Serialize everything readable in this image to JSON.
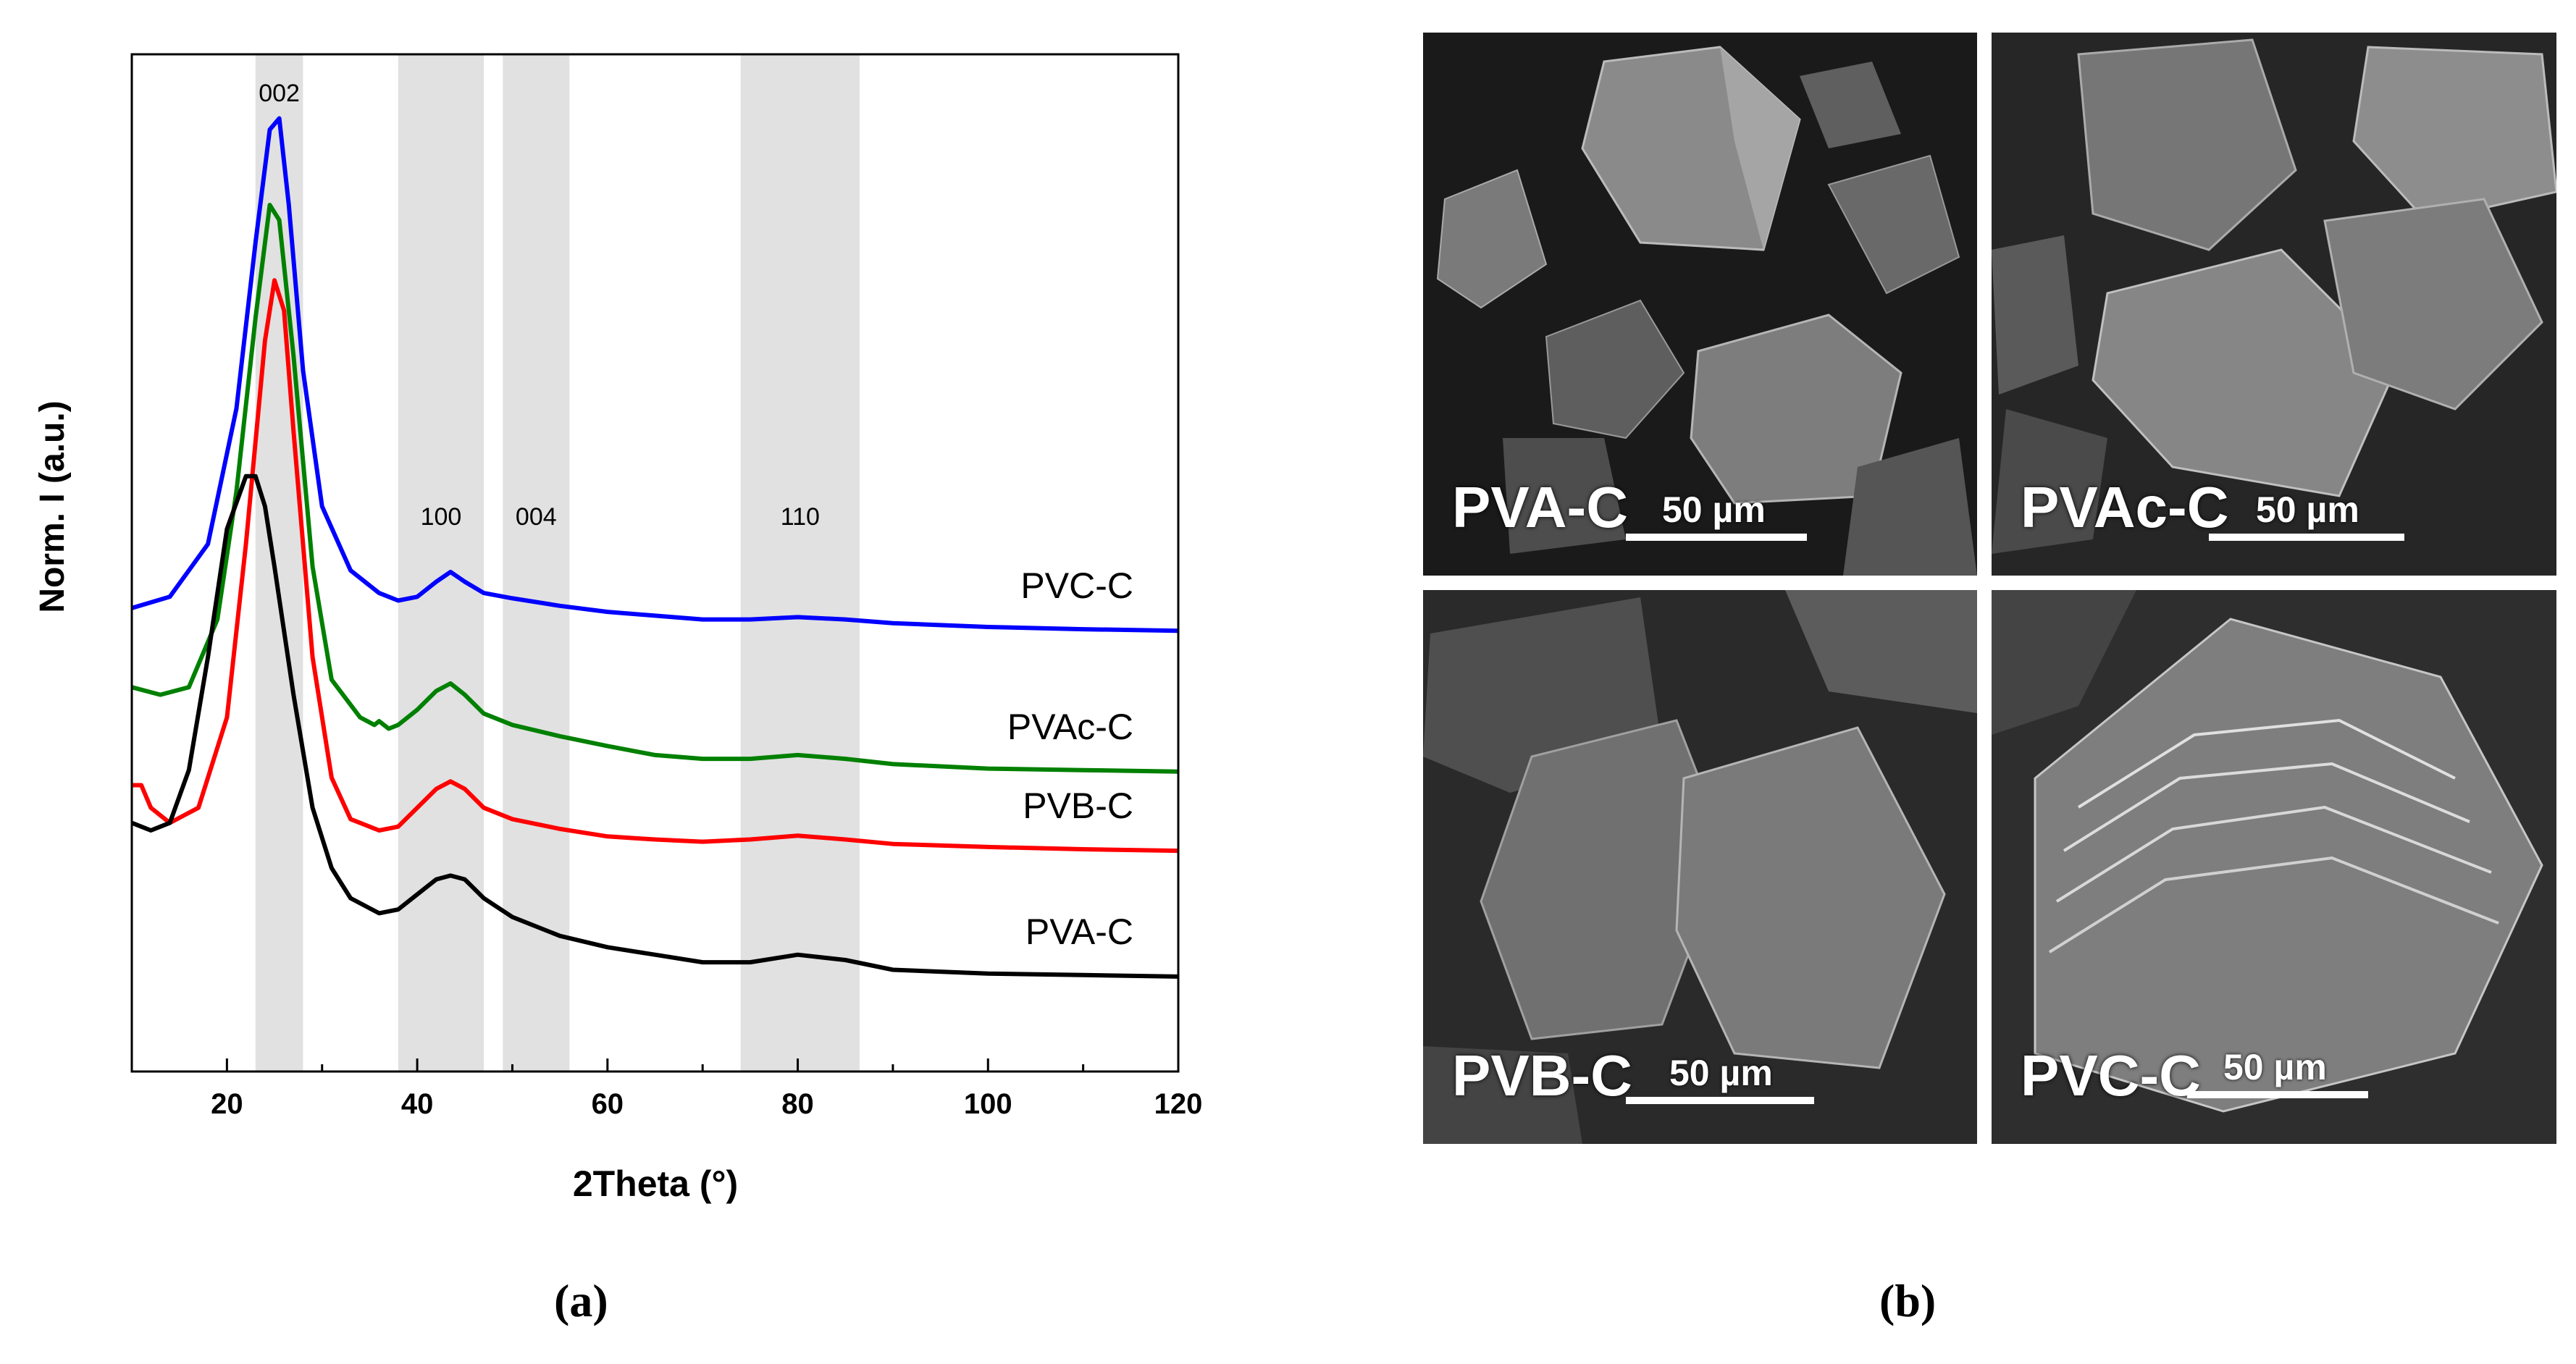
{
  "chart_data": {
    "type": "line",
    "xlabel": "2Theta (°)",
    "ylabel": "Norm. I (a.u.)",
    "xlim": [
      10,
      120
    ],
    "xticks": [
      20,
      40,
      60,
      80,
      100,
      120
    ],
    "grid": false,
    "shaded_bands": [
      {
        "label": "002",
        "range": [
          23,
          28
        ]
      },
      {
        "label": "100",
        "range": [
          38,
          47
        ]
      },
      {
        "label": "004",
        "range": [
          49,
          56
        ]
      },
      {
        "label": "110",
        "range": [
          74,
          86.5
        ]
      }
    ],
    "series": [
      {
        "name": "PVC-C",
        "color": "#0000ff",
        "points": [
          [
            10,
            0.565
          ],
          [
            14,
            0.58
          ],
          [
            18,
            0.65
          ],
          [
            21,
            0.83
          ],
          [
            23,
            1.05
          ],
          [
            24.5,
            1.2
          ],
          [
            25.5,
            1.215
          ],
          [
            26.5,
            1.1
          ],
          [
            28,
            0.88
          ],
          [
            30,
            0.7
          ],
          [
            33,
            0.615
          ],
          [
            36,
            0.585
          ],
          [
            38,
            0.575
          ],
          [
            40,
            0.58
          ],
          [
            42,
            0.6
          ],
          [
            43.5,
            0.613
          ],
          [
            45,
            0.6
          ],
          [
            47,
            0.585
          ],
          [
            50,
            0.578
          ],
          [
            55,
            0.568
          ],
          [
            60,
            0.56
          ],
          [
            65,
            0.555
          ],
          [
            70,
            0.55
          ],
          [
            75,
            0.55
          ],
          [
            80,
            0.553
          ],
          [
            85,
            0.55
          ],
          [
            90,
            0.545
          ],
          [
            100,
            0.54
          ],
          [
            110,
            0.537
          ],
          [
            120,
            0.535
          ]
        ]
      },
      {
        "name": "PVAc-C",
        "color": "#008000",
        "points": [
          [
            10,
            0.46
          ],
          [
            13,
            0.45
          ],
          [
            16,
            0.46
          ],
          [
            19,
            0.55
          ],
          [
            21,
            0.72
          ],
          [
            23,
            0.95
          ],
          [
            24.5,
            1.1
          ],
          [
            25.5,
            1.08
          ],
          [
            27,
            0.9
          ],
          [
            29,
            0.62
          ],
          [
            31,
            0.47
          ],
          [
            34,
            0.42
          ],
          [
            35.5,
            0.41
          ],
          [
            36,
            0.415
          ],
          [
            37,
            0.405
          ],
          [
            38,
            0.41
          ],
          [
            40,
            0.43
          ],
          [
            42,
            0.455
          ],
          [
            43.5,
            0.465
          ],
          [
            45,
            0.45
          ],
          [
            47,
            0.425
          ],
          [
            50,
            0.41
          ],
          [
            55,
            0.395
          ],
          [
            60,
            0.382
          ],
          [
            65,
            0.37
          ],
          [
            70,
            0.365
          ],
          [
            75,
            0.365
          ],
          [
            80,
            0.37
          ],
          [
            85,
            0.365
          ],
          [
            90,
            0.358
          ],
          [
            100,
            0.352
          ],
          [
            110,
            0.35
          ],
          [
            120,
            0.348
          ]
        ]
      },
      {
        "name": "PVB-C",
        "color": "#ff0000",
        "points": [
          [
            10,
            0.33
          ],
          [
            11,
            0.33
          ],
          [
            12,
            0.3
          ],
          [
            14,
            0.28
          ],
          [
            17,
            0.3
          ],
          [
            20,
            0.42
          ],
          [
            22,
            0.65
          ],
          [
            24,
            0.92
          ],
          [
            25,
            1.0
          ],
          [
            26,
            0.96
          ],
          [
            27,
            0.8
          ],
          [
            29,
            0.5
          ],
          [
            31,
            0.34
          ],
          [
            33,
            0.285
          ],
          [
            36,
            0.27
          ],
          [
            38,
            0.275
          ],
          [
            40,
            0.3
          ],
          [
            42,
            0.325
          ],
          [
            43.5,
            0.335
          ],
          [
            45,
            0.325
          ],
          [
            47,
            0.3
          ],
          [
            50,
            0.285
          ],
          [
            55,
            0.272
          ],
          [
            60,
            0.262
          ],
          [
            65,
            0.258
          ],
          [
            70,
            0.255
          ],
          [
            75,
            0.258
          ],
          [
            80,
            0.263
          ],
          [
            85,
            0.258
          ],
          [
            90,
            0.252
          ],
          [
            100,
            0.248
          ],
          [
            110,
            0.245
          ],
          [
            120,
            0.243
          ]
        ]
      },
      {
        "name": "PVA-C",
        "color": "#000000",
        "points": [
          [
            10,
            0.28
          ],
          [
            12,
            0.27
          ],
          [
            14,
            0.28
          ],
          [
            16,
            0.35
          ],
          [
            18,
            0.5
          ],
          [
            20,
            0.67
          ],
          [
            22,
            0.74
          ],
          [
            23,
            0.74
          ],
          [
            24,
            0.7
          ],
          [
            25,
            0.62
          ],
          [
            27,
            0.45
          ],
          [
            29,
            0.3
          ],
          [
            31,
            0.22
          ],
          [
            33,
            0.18
          ],
          [
            36,
            0.16
          ],
          [
            38,
            0.165
          ],
          [
            40,
            0.185
          ],
          [
            42,
            0.205
          ],
          [
            43.5,
            0.21
          ],
          [
            45,
            0.205
          ],
          [
            47,
            0.18
          ],
          [
            50,
            0.155
          ],
          [
            55,
            0.13
          ],
          [
            60,
            0.115
          ],
          [
            65,
            0.105
          ],
          [
            70,
            0.095
          ],
          [
            75,
            0.095
          ],
          [
            80,
            0.105
          ],
          [
            85,
            0.098
          ],
          [
            90,
            0.085
          ],
          [
            100,
            0.08
          ],
          [
            110,
            0.078
          ],
          [
            120,
            0.076
          ]
        ]
      }
    ]
  },
  "captions": {
    "a": "(a)",
    "b": "(b)"
  },
  "sem_panels": [
    {
      "label": "PVA-C",
      "scale": "50 µm"
    },
    {
      "label": "PVAc-C",
      "scale": "50 µm"
    },
    {
      "label": "PVB-C",
      "scale": "50 µm"
    },
    {
      "label": "PVC-C",
      "scale": "50 µm"
    }
  ]
}
